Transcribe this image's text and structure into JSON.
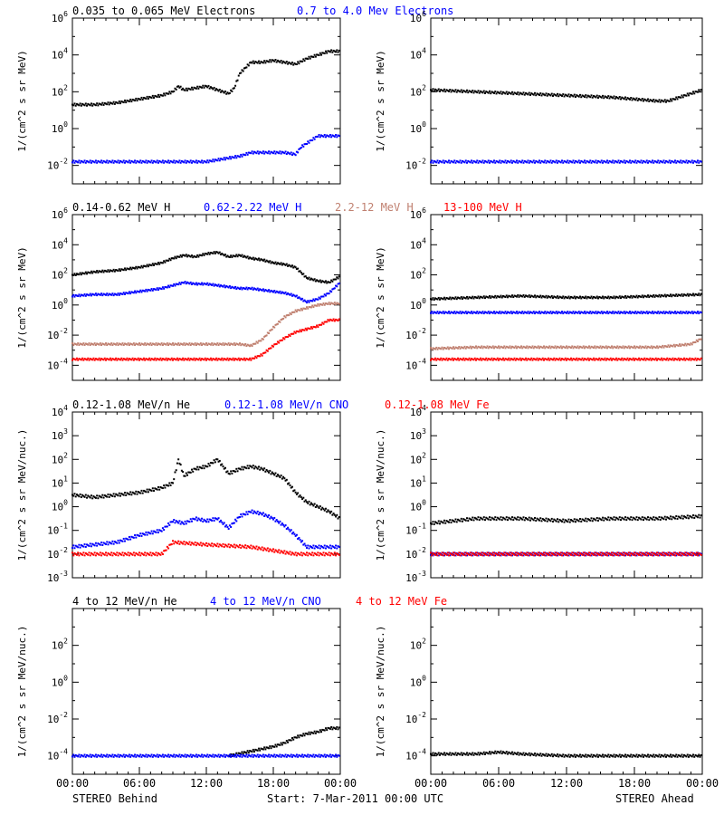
{
  "figure": {
    "footer": {
      "left": "STEREO Behind",
      "center": "Start:  7-Mar-2011 00:00 UTC",
      "right": "STEREO Ahead"
    },
    "time_ticks": [
      "00:00",
      "06:00",
      "12:00",
      "18:00",
      "00:00"
    ]
  },
  "colors": {
    "black": "#000000",
    "blue": "#0000ff",
    "tan": "#c08070",
    "red": "#ff0000"
  },
  "chart_data": [
    {
      "type": "scatter",
      "row": 0,
      "ylabel": "1/(cm^2 s sr MeV)",
      "yscale": "log",
      "ylim_exp": [
        -3,
        6
      ],
      "ytick_exps": [
        -2,
        0,
        2,
        4,
        6
      ],
      "x_range_hours": [
        0,
        24
      ],
      "legend": [
        {
          "text": "0.035 to 0.065 MeV Electrons",
          "color": "#000000"
        },
        {
          "text": "0.7 to 4.0 Mev Electrons",
          "color": "#0000ff"
        }
      ],
      "panels": {
        "behind": [
          {
            "name": "0.035 to 0.065 MeV Electrons",
            "color": "#000000",
            "x": [
              0,
              2,
              4,
              6,
              8,
              9,
              9.5,
              10,
              11,
              12,
              13,
              14,
              14.5,
              15,
              16,
              17,
              18,
              19,
              20,
              21,
              22,
              23,
              24
            ],
            "y": [
              1.3,
              1.3,
              1.4,
              1.6,
              1.8,
              2.0,
              2.3,
              2.1,
              2.2,
              2.3,
              2.1,
              1.9,
              2.2,
              3.0,
              3.6,
              3.6,
              3.7,
              3.6,
              3.5,
              3.8,
              4.0,
              4.2,
              4.2
            ]
          },
          {
            "name": "0.7 to 4.0 Mev Electrons",
            "color": "#0000ff",
            "x": [
              0,
              3,
              6,
              9,
              12,
              13,
              14,
              15,
              16,
              17,
              18,
              19,
              20,
              20.5,
              21,
              22,
              23,
              24
            ],
            "y": [
              -1.8,
              -1.8,
              -1.8,
              -1.8,
              -1.8,
              -1.7,
              -1.6,
              -1.5,
              -1.3,
              -1.3,
              -1.3,
              -1.3,
              -1.4,
              -1.0,
              -0.8,
              -0.4,
              -0.4,
              -0.4
            ]
          }
        ],
        "ahead": [
          {
            "name": "0.035 to 0.065 MeV Electrons",
            "color": "#000000",
            "x": [
              0,
              4,
              8,
              12,
              16,
              18,
              20,
              21,
              22,
              23,
              24
            ],
            "y": [
              2.1,
              2.0,
              1.9,
              1.8,
              1.7,
              1.6,
              1.5,
              1.5,
              1.7,
              1.9,
              2.1
            ]
          },
          {
            "name": "0.7 to 4.0 Mev Electrons",
            "color": "#0000ff",
            "x": [
              0,
              6,
              12,
              18,
              24
            ],
            "y": [
              -1.8,
              -1.8,
              -1.8,
              -1.8,
              -1.8
            ]
          }
        ]
      }
    },
    {
      "type": "scatter",
      "row": 1,
      "ylabel": "1/(cm^2 s sr MeV)",
      "yscale": "log",
      "ylim_exp": [
        -5,
        6
      ],
      "ytick_exps": [
        -4,
        -2,
        0,
        2,
        4,
        6
      ],
      "x_range_hours": [
        0,
        24
      ],
      "legend": [
        {
          "text": "0.14-0.62 MeV H",
          "color": "#000000"
        },
        {
          "text": "0.62-2.22 MeV H",
          "color": "#0000ff"
        },
        {
          "text": "2.2-12 MeV H",
          "color": "#c08070"
        },
        {
          "text": "13-100 MeV H",
          "color": "#ff0000"
        }
      ],
      "panels": {
        "behind": [
          {
            "name": "0.14-0.62 MeV H",
            "color": "#000000",
            "x": [
              0,
              2,
              4,
              6,
              8,
              9,
              10,
              11,
              12,
              13,
              14,
              15,
              16,
              17,
              18,
              19,
              20,
              21,
              22,
              23,
              24
            ],
            "y": [
              2.0,
              2.2,
              2.3,
              2.5,
              2.8,
              3.1,
              3.3,
              3.2,
              3.4,
              3.5,
              3.2,
              3.3,
              3.1,
              3.0,
              2.8,
              2.7,
              2.5,
              1.8,
              1.6,
              1.5,
              1.9
            ]
          },
          {
            "name": "0.62-2.22 MeV H",
            "color": "#0000ff",
            "x": [
              0,
              2,
              4,
              6,
              8,
              9,
              10,
              11,
              12,
              13,
              14,
              15,
              16,
              17,
              18,
              19,
              20,
              21,
              22,
              23,
              24
            ],
            "y": [
              0.6,
              0.7,
              0.7,
              0.9,
              1.1,
              1.3,
              1.5,
              1.4,
              1.4,
              1.3,
              1.2,
              1.1,
              1.1,
              1.0,
              0.9,
              0.8,
              0.6,
              0.2,
              0.4,
              0.8,
              1.5
            ]
          },
          {
            "name": "2.2-12 MeV H",
            "color": "#c08070",
            "x": [
              0,
              3,
              6,
              9,
              12,
              14,
              15,
              16,
              17,
              18,
              19,
              20,
              21,
              22,
              23,
              24
            ],
            "y": [
              -2.6,
              -2.6,
              -2.6,
              -2.6,
              -2.6,
              -2.6,
              -2.6,
              -2.7,
              -2.3,
              -1.5,
              -0.8,
              -0.4,
              -0.2,
              0.0,
              0.1,
              0.1
            ]
          },
          {
            "name": "13-100 MeV H",
            "color": "#ff0000",
            "x": [
              0,
              3,
              6,
              9,
              12,
              15,
              16,
              17,
              18,
              19,
              20,
              21,
              22,
              23,
              24
            ],
            "y": [
              -3.6,
              -3.6,
              -3.6,
              -3.6,
              -3.6,
              -3.6,
              -3.6,
              -3.3,
              -2.7,
              -2.2,
              -1.8,
              -1.6,
              -1.4,
              -1.0,
              -1.0
            ]
          }
        ],
        "ahead": [
          {
            "name": "0.14-0.62 MeV H",
            "color": "#000000",
            "x": [
              0,
              4,
              8,
              12,
              16,
              20,
              24
            ],
            "y": [
              0.4,
              0.5,
              0.6,
              0.5,
              0.5,
              0.6,
              0.7
            ]
          },
          {
            "name": "0.62-2.22 MeV H",
            "color": "#0000ff",
            "x": [
              0,
              6,
              12,
              18,
              24
            ],
            "y": [
              -0.5,
              -0.5,
              -0.5,
              -0.5,
              -0.5
            ]
          },
          {
            "name": "2.2-12 MeV H",
            "color": "#c08070",
            "x": [
              0,
              4,
              8,
              12,
              16,
              20,
              23,
              24
            ],
            "y": [
              -2.9,
              -2.8,
              -2.8,
              -2.8,
              -2.8,
              -2.8,
              -2.6,
              -2.2
            ]
          },
          {
            "name": "13-100 MeV H",
            "color": "#ff0000",
            "x": [
              0,
              6,
              12,
              18,
              24
            ],
            "y": [
              -3.6,
              -3.6,
              -3.6,
              -3.6,
              -3.6
            ]
          }
        ]
      }
    },
    {
      "type": "scatter",
      "row": 2,
      "ylabel": "1/(cm^2 s sr MeV/nuc.)",
      "yscale": "log",
      "ylim_exp": [
        -3,
        4
      ],
      "ytick_exps": [
        -3,
        -2,
        -1,
        0,
        1,
        2,
        3,
        4
      ],
      "x_range_hours": [
        0,
        24
      ],
      "legend": [
        {
          "text": "0.12-1.08 MeV/n He",
          "color": "#000000"
        },
        {
          "text": "0.12-1.08 MeV/n CNO",
          "color": "#0000ff"
        },
        {
          "text": "0.12-1.08 MeV Fe",
          "color": "#ff0000"
        }
      ],
      "panels": {
        "behind": [
          {
            "name": "0.12-1.08 MeV/n He",
            "color": "#000000",
            "x": [
              0,
              2,
              4,
              6,
              8,
              9,
              9.5,
              10,
              11,
              12,
              13,
              14,
              15,
              16,
              17,
              18,
              19,
              20,
              21,
              22,
              23,
              24
            ],
            "y": [
              0.5,
              0.4,
              0.5,
              0.6,
              0.8,
              1.0,
              2.0,
              1.3,
              1.6,
              1.7,
              2.0,
              1.4,
              1.6,
              1.7,
              1.6,
              1.4,
              1.2,
              0.6,
              0.2,
              0.0,
              -0.2,
              -0.5
            ]
          },
          {
            "name": "0.12-1.08 MeV/n CNO",
            "color": "#0000ff",
            "x": [
              0,
              2,
              4,
              6,
              8,
              9,
              10,
              11,
              12,
              13,
              14,
              15,
              16,
              17,
              18,
              19,
              20,
              21,
              22,
              24
            ],
            "y": [
              -1.7,
              -1.6,
              -1.5,
              -1.2,
              -1.0,
              -0.6,
              -0.7,
              -0.5,
              -0.6,
              -0.5,
              -0.9,
              -0.4,
              -0.2,
              -0.3,
              -0.5,
              -0.8,
              -1.2,
              -1.7,
              -1.7,
              -1.7
            ]
          },
          {
            "name": "0.12-1.08 MeV Fe",
            "color": "#ff0000",
            "x": [
              0,
              4,
              8,
              9,
              12,
              16,
              20,
              24
            ],
            "y": [
              -2.0,
              -2.0,
              -2.0,
              -1.5,
              -1.6,
              -1.7,
              -2.0,
              -2.0
            ]
          }
        ],
        "ahead": [
          {
            "name": "0.12-1.08 MeV/n He",
            "color": "#000000",
            "x": [
              0,
              4,
              8,
              12,
              16,
              20,
              24
            ],
            "y": [
              -0.7,
              -0.5,
              -0.5,
              -0.6,
              -0.5,
              -0.5,
              -0.4
            ]
          },
          {
            "name": "0.12-1.08 MeV/n CNO",
            "color": "#0000ff",
            "x": [
              0,
              6,
              12,
              18,
              24
            ],
            "y": [
              -2.0,
              -2.0,
              -2.0,
              -2.0,
              -2.0
            ]
          },
          {
            "name": "0.12-1.08 MeV Fe",
            "color": "#ff0000",
            "x": [
              0,
              6,
              12,
              18,
              24
            ],
            "y": [
              -2.0,
              -2.0,
              -2.0,
              -2.0,
              -2.0
            ]
          }
        ]
      }
    },
    {
      "type": "scatter",
      "row": 3,
      "ylabel": "1/(cm^2 s sr MeV/nuc.)",
      "yscale": "log",
      "ylim_exp": [
        -5,
        4
      ],
      "ytick_exps": [
        -4,
        -2,
        0,
        2
      ],
      "x_range_hours": [
        0,
        24
      ],
      "legend": [
        {
          "text": "4 to 12 MeV/n He",
          "color": "#000000"
        },
        {
          "text": "4 to 12 MeV/n CNO",
          "color": "#0000ff"
        },
        {
          "text": "4 to 12 MeV Fe",
          "color": "#ff0000"
        }
      ],
      "panels": {
        "behind": [
          {
            "name": "4 to 12 MeV/n He",
            "color": "#000000",
            "x": [
              14,
              18,
              19,
              20,
              21,
              22,
              23,
              24
            ],
            "y": [
              -4.0,
              -3.5,
              -3.3,
              -3.0,
              -2.8,
              -2.7,
              -2.5,
              -2.5
            ]
          },
          {
            "name": "4 to 12 MeV/n CNO",
            "color": "#0000ff",
            "x": [
              0,
              6,
              12,
              18,
              24
            ],
            "y": [
              -4.0,
              -4.0,
              -4.0,
              -4.0,
              -4.0
            ]
          }
        ],
        "ahead": [
          {
            "name": "4 to 12 MeV/n He",
            "color": "#000000",
            "x": [
              0,
              2,
              4,
              6,
              8,
              12,
              18,
              24
            ],
            "y": [
              -3.9,
              -3.9,
              -3.9,
              -3.8,
              -3.9,
              -4.0,
              -4.0,
              -4.0
            ]
          }
        ]
      }
    }
  ]
}
